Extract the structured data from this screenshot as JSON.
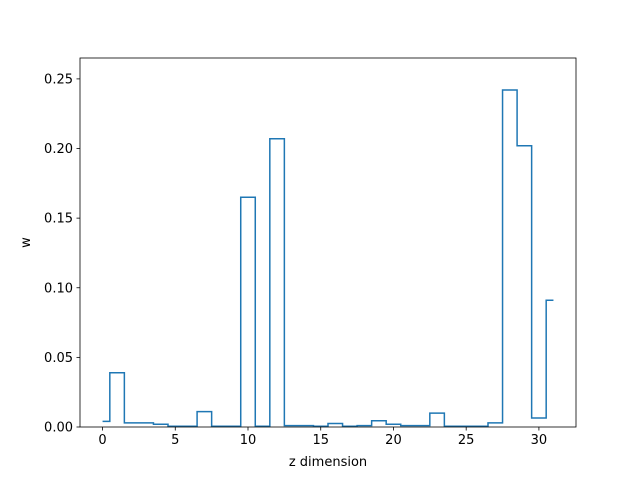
{
  "chart_data": {
    "type": "line",
    "style": "step-mid",
    "title": "",
    "xlabel": "z dimension",
    "ylabel": "w",
    "xlim": [
      -1.55,
      32.55
    ],
    "ylim": [
      0,
      0.265
    ],
    "xticks": [
      0,
      5,
      10,
      15,
      20,
      25,
      30
    ],
    "yticks": [
      0.0,
      0.05,
      0.1,
      0.15,
      0.2,
      0.25
    ],
    "xtick_labels": [
      "0",
      "5",
      "10",
      "15",
      "20",
      "25",
      "30"
    ],
    "ytick_labels": [
      "0.00",
      "0.05",
      "0.10",
      "0.15",
      "0.20",
      "0.25"
    ],
    "grid": false,
    "line_color": "#1f77b4",
    "series": [
      {
        "x": [
          0,
          1,
          2,
          3,
          4,
          5,
          6,
          7,
          8,
          9,
          10,
          11,
          12,
          13,
          14,
          15,
          16,
          17,
          18,
          19,
          20,
          21,
          22,
          23,
          24,
          25,
          26,
          27,
          28,
          29,
          30,
          31
        ],
        "values": [
          0.004,
          0.039,
          0.003,
          0.003,
          0.002,
          0.0005,
          0.0005,
          0.011,
          0.0005,
          0.0005,
          0.165,
          0.0005,
          0.207,
          0.001,
          0.001,
          0.0005,
          0.0025,
          0.0005,
          0.001,
          0.0045,
          0.002,
          0.001,
          0.001,
          0.01,
          0.0005,
          0.0005,
          0.0005,
          0.003,
          0.242,
          0.202,
          0.0065,
          0.091
        ]
      }
    ]
  }
}
